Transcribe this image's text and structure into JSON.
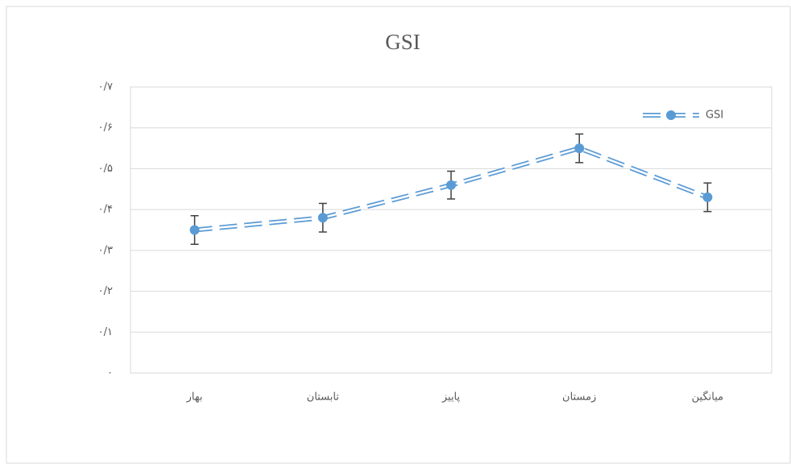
{
  "chart_data": {
    "type": "line",
    "title": "GSI",
    "categories": [
      "بهار",
      "تابستان",
      "پاییز",
      "زمستان",
      "میانگین"
    ],
    "series": [
      {
        "name": "GSI",
        "color": "#5b9bd5",
        "values": [
          0.35,
          0.38,
          0.46,
          0.55,
          0.43
        ],
        "errors": [
          0.035,
          0.035,
          0.034,
          0.035,
          0.035
        ]
      }
    ],
    "ylim": [
      0,
      0.7
    ],
    "yticks": [
      {
        "value": 0,
        "label": "۰"
      },
      {
        "value": 0.1,
        "label": "۰/۱"
      },
      {
        "value": 0.2,
        "label": "۰/۲"
      },
      {
        "value": 0.3,
        "label": "۰/۳"
      },
      {
        "value": 0.4,
        "label": "۰/۴"
      },
      {
        "value": 0.5,
        "label": "۰/۵"
      },
      {
        "value": 0.6,
        "label": "۰/۶"
      },
      {
        "value": 0.7,
        "label": "۰/۷"
      }
    ],
    "grid": true,
    "legend": "top-right"
  }
}
